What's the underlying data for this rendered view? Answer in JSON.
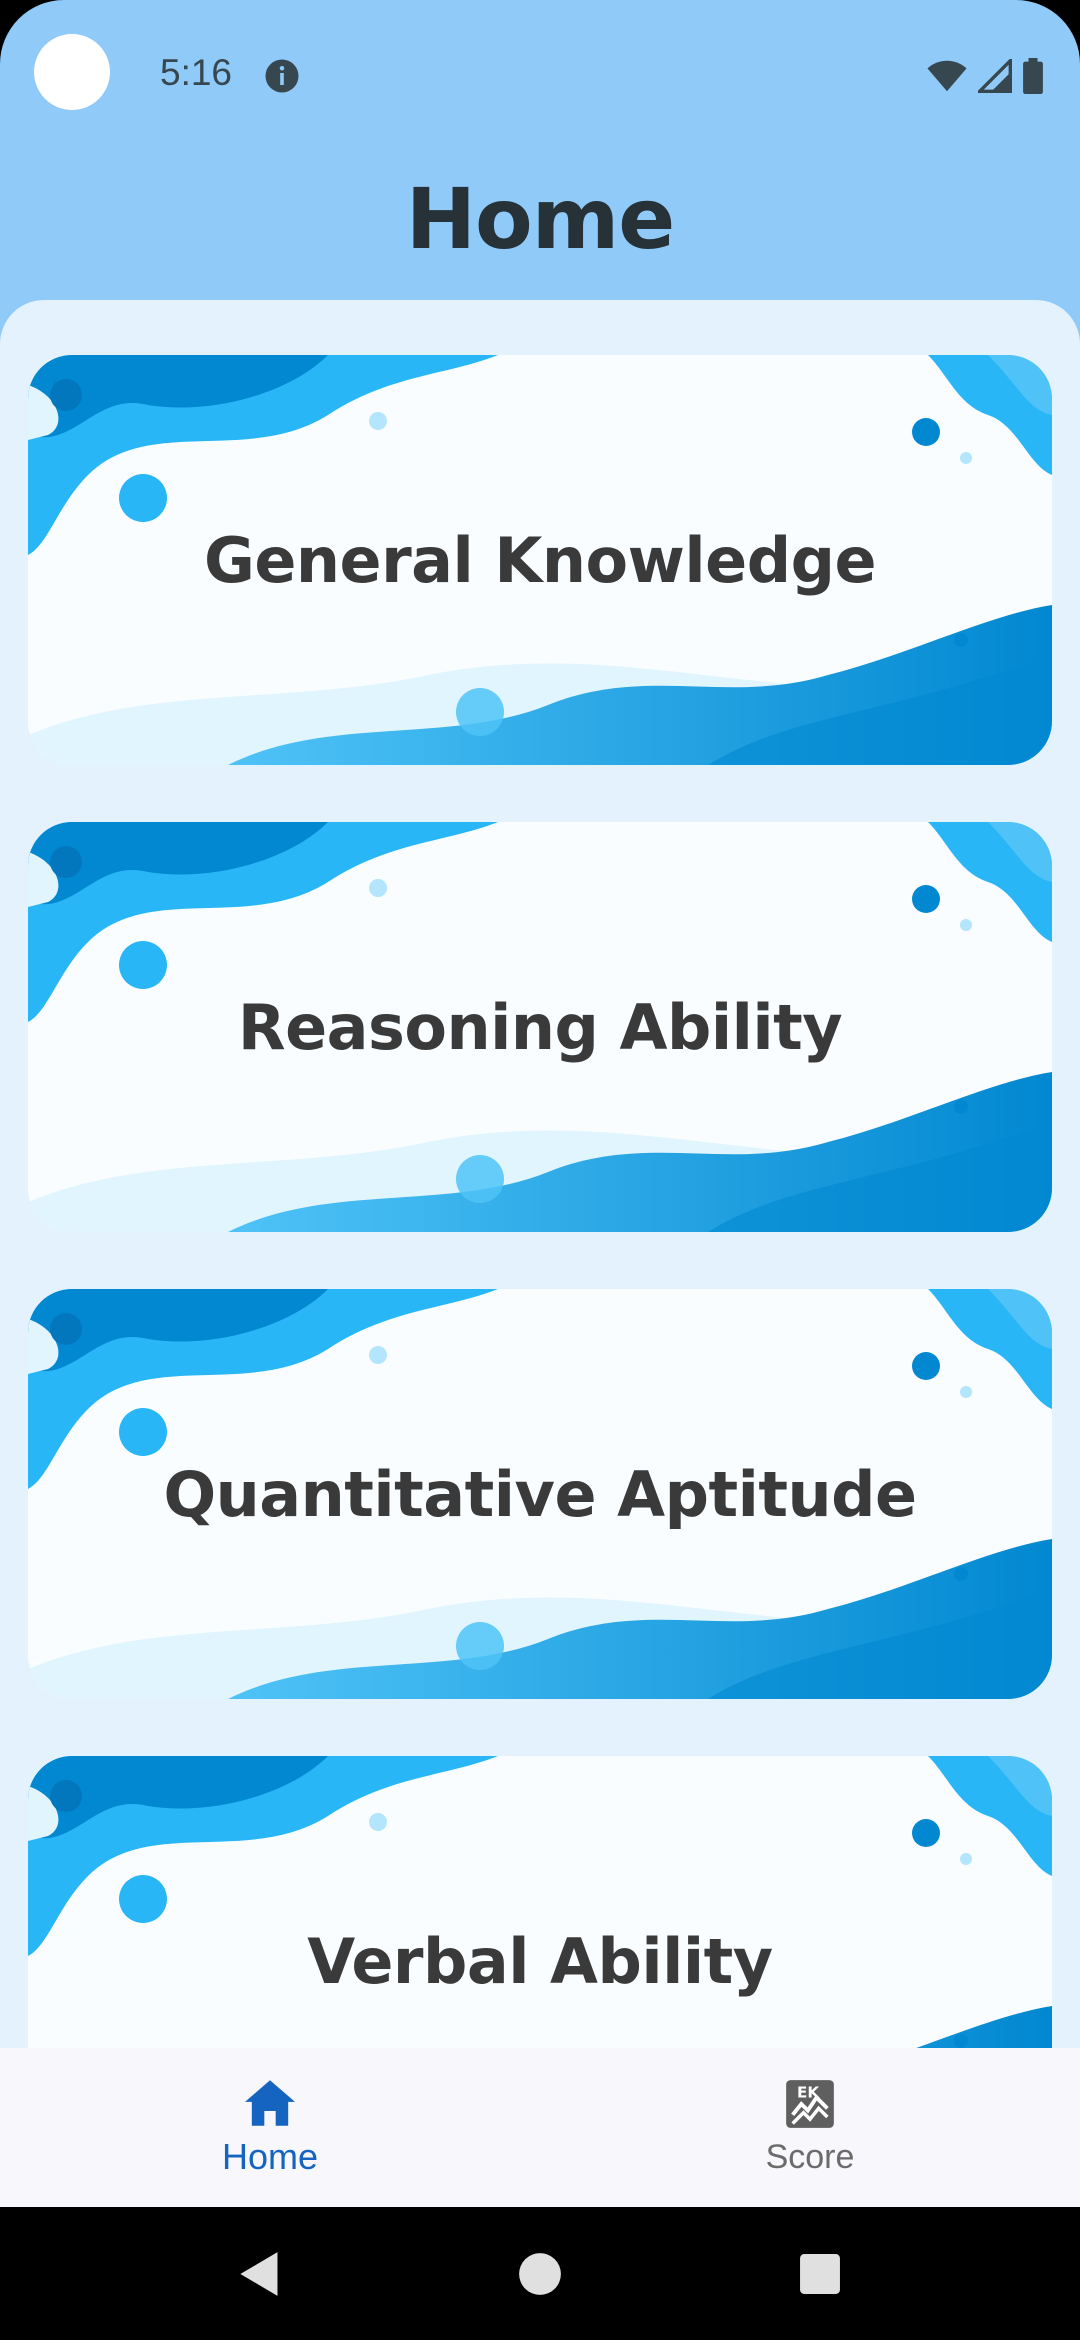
{
  "status_bar": {
    "time": "5:16"
  },
  "app_bar": {
    "title": "Home"
  },
  "categories": [
    {
      "label": "General Knowledge"
    },
    {
      "label": "Reasoning Ability"
    },
    {
      "label": "Quantitative Aptitude"
    },
    {
      "label": "Verbal Ability"
    }
  ],
  "bottom_nav": {
    "items": [
      {
        "label": "Home",
        "icon": "home-icon",
        "active": true
      },
      {
        "label": "Score",
        "icon": "score-icon",
        "active": false
      }
    ]
  },
  "colors": {
    "app_bar": "#90CAF9",
    "content_bg": "#E3F2FD",
    "active_nav": "#1565C0",
    "wave_dark": "#0288D1",
    "wave_light": "#29B6F6"
  }
}
